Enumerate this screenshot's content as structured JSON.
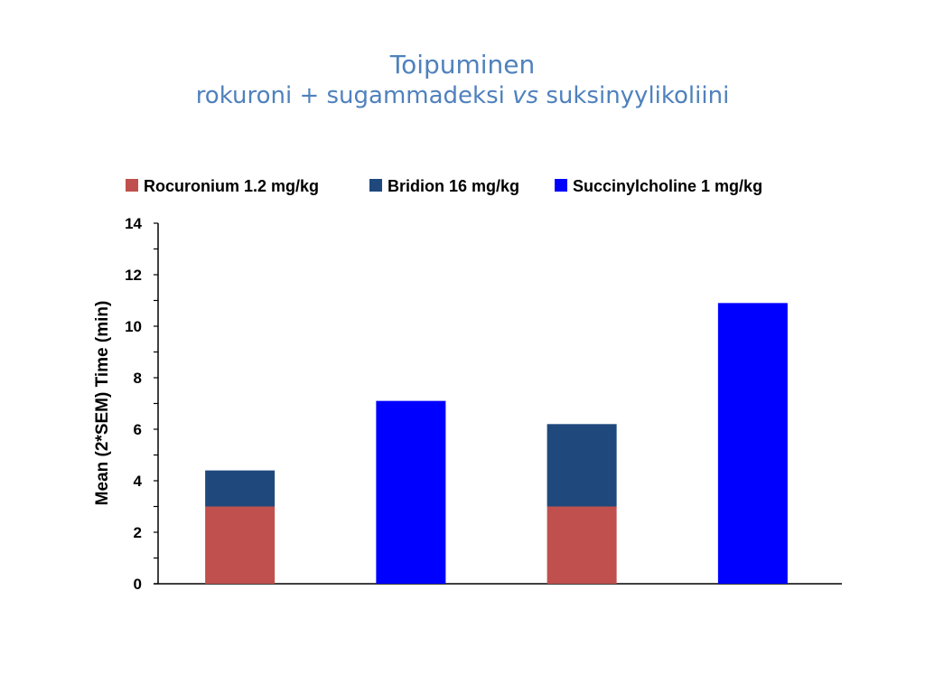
{
  "slide": {
    "title": "Toipuminen",
    "subtitle_part1": "rokuroni + sugammadeksi ",
    "subtitle_italic": "vs",
    "subtitle_part2": " suksinyylikoliini"
  },
  "chart_data": {
    "type": "bar",
    "stacked": true,
    "categories": [
      "",
      "",
      "",
      ""
    ],
    "series": [
      {
        "name": "Rocuronium 1.2 mg/kg",
        "color": "#c0504d",
        "values": [
          3.0,
          0,
          3.0,
          0
        ]
      },
      {
        "name": "Bridion 16 mg/kg",
        "color": "#1f497d",
        "values": [
          1.4,
          0,
          3.2,
          0
        ]
      },
      {
        "name": "Succinylcholine 1 mg/kg",
        "color": "#0000ff",
        "values": [
          0,
          7.1,
          0,
          10.9
        ]
      }
    ],
    "ylabel": "Mean (2*SEM) Time (min)",
    "ylim": [
      0,
      14
    ],
    "yticks": [
      "0",
      "2",
      "4",
      "6",
      "8",
      "10",
      "12",
      "14"
    ],
    "legend_position": "top",
    "grid": false
  }
}
